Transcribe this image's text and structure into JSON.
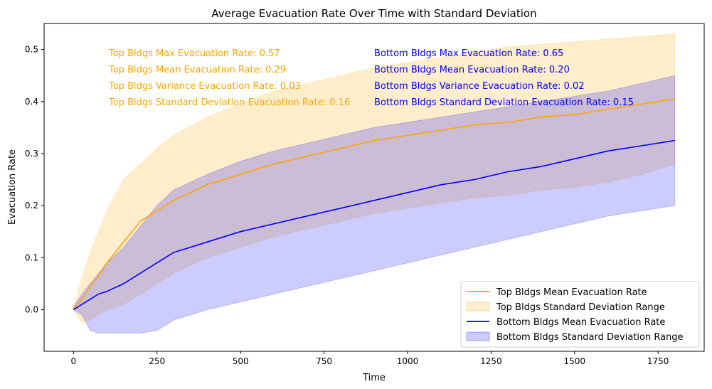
{
  "chart_data": {
    "type": "line",
    "title": "Average Evacuation Rate Over Time with Standard Deviation",
    "xlabel": "Time",
    "ylabel": "Evacuation Rate",
    "xlim": [
      -88,
      1888
    ],
    "ylim": [
      -0.08,
      0.55
    ],
    "xticks": [
      0,
      250,
      500,
      750,
      1000,
      1250,
      1500,
      1750
    ],
    "yticks": [
      0.0,
      0.1,
      0.2,
      0.3,
      0.4,
      0.5
    ],
    "xtick_labels": [
      "0",
      "250",
      "500",
      "750",
      "1000",
      "1250",
      "1500",
      "1750"
    ],
    "ytick_labels": [
      "0.0",
      "0.1",
      "0.2",
      "0.3",
      "0.4",
      "0.5"
    ],
    "grid": false,
    "legend_position": "lower-right",
    "x": [
      0,
      25,
      50,
      75,
      100,
      150,
      200,
      250,
      300,
      400,
      500,
      600,
      700,
      800,
      900,
      1000,
      1100,
      1200,
      1300,
      1400,
      1500,
      1600,
      1700,
      1800
    ],
    "series": [
      {
        "name": "Top Bldgs Mean Evacuation Rate",
        "band_name": "Top Bldgs Standard Deviation Range",
        "color": "#ffa500",
        "band_color": "#ffa500",
        "mean": [
          0.0,
          0.02,
          0.045,
          0.065,
          0.09,
          0.13,
          0.17,
          0.19,
          0.21,
          0.24,
          0.26,
          0.28,
          0.295,
          0.31,
          0.325,
          0.335,
          0.345,
          0.355,
          0.36,
          0.37,
          0.375,
          0.385,
          0.395,
          0.405
        ],
        "upper": [
          0.005,
          0.06,
          0.11,
          0.15,
          0.19,
          0.25,
          0.28,
          0.31,
          0.335,
          0.37,
          0.395,
          0.42,
          0.435,
          0.45,
          0.465,
          0.475,
          0.485,
          0.495,
          0.505,
          0.51,
          0.515,
          0.52,
          0.525,
          0.53
        ],
        "lower": [
          0.0,
          -0.025,
          -0.02,
          -0.01,
          0.0,
          0.01,
          0.03,
          0.05,
          0.07,
          0.1,
          0.12,
          0.14,
          0.155,
          0.17,
          0.185,
          0.195,
          0.205,
          0.215,
          0.22,
          0.23,
          0.235,
          0.245,
          0.26,
          0.28
        ]
      },
      {
        "name": "Bottom Bldgs Mean Evacuation Rate",
        "band_name": "Bottom Bldgs Standard Deviation Range",
        "color": "#0000ff",
        "band_color": "#0000ff",
        "mean": [
          0.0,
          0.01,
          0.02,
          0.03,
          0.035,
          0.05,
          0.07,
          0.09,
          0.11,
          0.13,
          0.15,
          0.165,
          0.18,
          0.195,
          0.21,
          0.225,
          0.24,
          0.25,
          0.265,
          0.275,
          0.29,
          0.305,
          0.315,
          0.325
        ],
        "upper": [
          0.005,
          0.03,
          0.05,
          0.07,
          0.09,
          0.12,
          0.16,
          0.2,
          0.23,
          0.26,
          0.285,
          0.305,
          0.32,
          0.335,
          0.35,
          0.36,
          0.37,
          0.38,
          0.39,
          0.4,
          0.41,
          0.42,
          0.435,
          0.45
        ],
        "lower": [
          0.0,
          -0.01,
          -0.04,
          -0.045,
          -0.045,
          -0.045,
          -0.045,
          -0.04,
          -0.02,
          0.0,
          0.015,
          0.03,
          0.045,
          0.06,
          0.075,
          0.09,
          0.105,
          0.12,
          0.135,
          0.15,
          0.165,
          0.18,
          0.19,
          0.2
        ]
      }
    ],
    "annotations": {
      "top": {
        "color": "#ffa500",
        "lines": [
          "Top Bldgs Max Evacuation Rate: 0.57",
          "Top Bldgs Mean Evacuation Rate: 0.29",
          "Top Bldgs Variance Evacuation Rate: 0.03",
          "Top Bldgs Standard Deviation Evacuation Rate: 0.16"
        ]
      },
      "bottom": {
        "color": "#0000ff",
        "lines": [
          "Bottom Bldgs Max Evacuation Rate: 0.65",
          "Bottom Bldgs Mean Evacuation Rate: 0.20",
          "Bottom Bldgs Variance Evacuation Rate: 0.02",
          "Bottom Bldgs Standard Deviation Evacuation Rate: 0.15"
        ]
      }
    }
  }
}
